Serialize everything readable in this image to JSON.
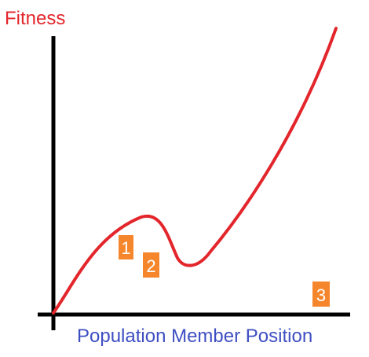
{
  "labels": {
    "y_axis": "Fitness",
    "x_axis": "Population Member Position"
  },
  "markers": [
    "1",
    "2",
    "3"
  ],
  "colors": {
    "axis": "#000000",
    "curve": "#e3262b",
    "y_label": "#e3262b",
    "x_label": "#3f4fc2",
    "marker_bg": "#f5862b",
    "marker_text": "#ffffff"
  }
}
